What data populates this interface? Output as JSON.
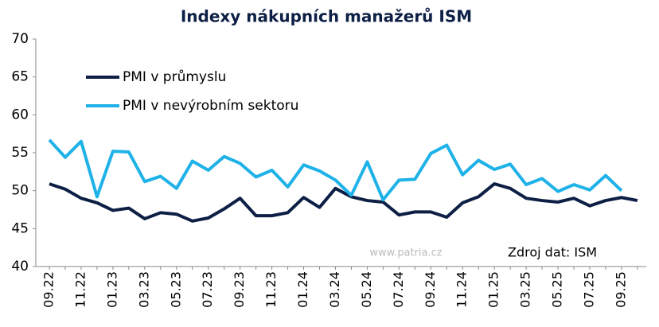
{
  "chart_data": {
    "type": "line",
    "title": "Indexy nákupních manažerů ISM",
    "source": "Zdroj dat: ISM",
    "watermark": "www.patria.cz",
    "categories": [
      "09.22",
      null,
      "11.22",
      null,
      "01.23",
      null,
      "03.23",
      null,
      "05.23",
      null,
      "07.23",
      null,
      "09.23",
      null,
      "11.23",
      null,
      "01.24",
      null,
      "03.24",
      null,
      "05.24",
      null,
      "07.24",
      null,
      "09.24",
      null,
      "11.24",
      null,
      "01.25",
      null,
      "03.25",
      null,
      "05.25",
      null,
      "07.25",
      null,
      "09.25",
      null
    ],
    "series": [
      {
        "name": "PMI v průmyslu",
        "color": "#0d1f45",
        "values": [
          50.9,
          50.2,
          49.0,
          48.4,
          47.4,
          47.7,
          46.3,
          47.1,
          46.9,
          46.0,
          46.4,
          47.6,
          49.0,
          46.7,
          46.7,
          47.1,
          49.1,
          47.8,
          50.3,
          49.2,
          48.7,
          48.5,
          46.8,
          47.2,
          47.2,
          46.5,
          48.4,
          49.2,
          50.9,
          50.3,
          49.0,
          48.7,
          48.5,
          49.0,
          48.0,
          48.7,
          49.1,
          48.7
        ]
      },
      {
        "name": "PMI v nevýrobním sektoru",
        "color": "#1fb2e8",
        "values": [
          56.7,
          54.4,
          56.5,
          49.2,
          55.2,
          55.1,
          51.2,
          51.9,
          50.3,
          53.9,
          52.7,
          54.5,
          53.6,
          51.8,
          52.7,
          50.5,
          53.4,
          52.6,
          51.4,
          49.4,
          53.8,
          48.8,
          51.4,
          51.5,
          54.9,
          56.0,
          52.1,
          54.0,
          52.8,
          53.5,
          50.8,
          51.6,
          49.9,
          50.8,
          50.1,
          52.0,
          50.0,
          null
        ]
      }
    ],
    "ylim": [
      40,
      70
    ],
    "yticks": [
      40,
      45,
      50,
      55,
      60,
      65,
      70
    ]
  }
}
